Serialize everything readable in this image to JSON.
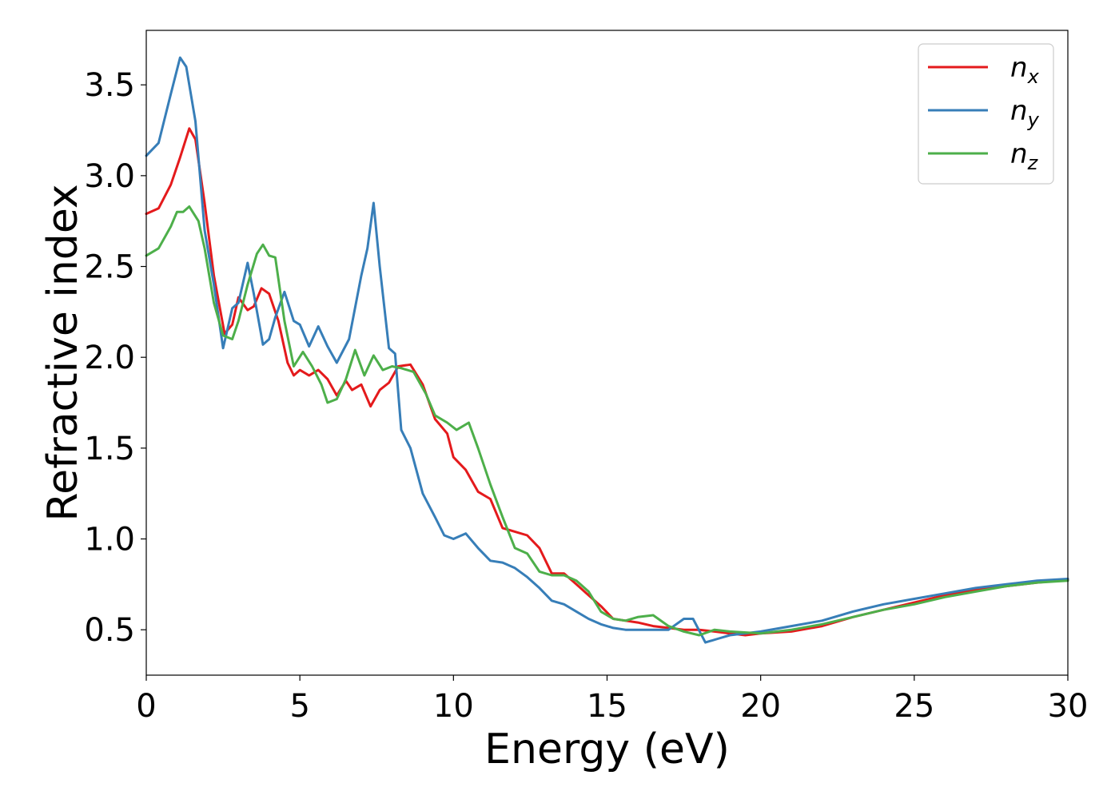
{
  "chart_data": {
    "type": "line",
    "xlabel": "Energy (eV)",
    "ylabel": "Refractive index",
    "xlim": [
      0,
      30
    ],
    "ylim": [
      0.25,
      3.8
    ],
    "xticks": [
      0,
      5,
      10,
      15,
      20,
      25,
      30
    ],
    "xtick_labels": [
      "0",
      "5",
      "10",
      "15",
      "20",
      "25",
      "30"
    ],
    "yticks": [
      0.5,
      1.0,
      1.5,
      2.0,
      2.5,
      3.0,
      3.5
    ],
    "ytick_labels": [
      "0.5",
      "1.0",
      "1.5",
      "2.0",
      "2.5",
      "3.0",
      "3.5"
    ],
    "grid": false,
    "legend_position": "top-right",
    "series": [
      {
        "name": "n",
        "subscript": "x",
        "color": "#e41a1c",
        "points": [
          [
            0,
            2.79
          ],
          [
            0.4,
            2.82
          ],
          [
            0.8,
            2.95
          ],
          [
            1.1,
            3.1
          ],
          [
            1.4,
            3.26
          ],
          [
            1.6,
            3.2
          ],
          [
            1.9,
            2.85
          ],
          [
            2.2,
            2.45
          ],
          [
            2.55,
            2.13
          ],
          [
            2.8,
            2.18
          ],
          [
            3.0,
            2.33
          ],
          [
            3.3,
            2.26
          ],
          [
            3.5,
            2.28
          ],
          [
            3.75,
            2.38
          ],
          [
            4.0,
            2.35
          ],
          [
            4.3,
            2.2
          ],
          [
            4.6,
            1.97
          ],
          [
            4.8,
            1.9
          ],
          [
            5.0,
            1.93
          ],
          [
            5.3,
            1.9
          ],
          [
            5.6,
            1.93
          ],
          [
            5.9,
            1.88
          ],
          [
            6.2,
            1.79
          ],
          [
            6.5,
            1.87
          ],
          [
            6.7,
            1.82
          ],
          [
            7.0,
            1.85
          ],
          [
            7.3,
            1.73
          ],
          [
            7.6,
            1.82
          ],
          [
            7.9,
            1.86
          ],
          [
            8.2,
            1.95
          ],
          [
            8.6,
            1.96
          ],
          [
            9.0,
            1.85
          ],
          [
            9.4,
            1.66
          ],
          [
            9.8,
            1.58
          ],
          [
            10.0,
            1.45
          ],
          [
            10.4,
            1.38
          ],
          [
            10.8,
            1.26
          ],
          [
            11.2,
            1.22
          ],
          [
            11.6,
            1.06
          ],
          [
            12.0,
            1.04
          ],
          [
            12.4,
            1.02
          ],
          [
            12.8,
            0.95
          ],
          [
            13.2,
            0.81
          ],
          [
            13.6,
            0.81
          ],
          [
            14.0,
            0.75
          ],
          [
            14.4,
            0.69
          ],
          [
            14.8,
            0.63
          ],
          [
            15.2,
            0.56
          ],
          [
            15.6,
            0.55
          ],
          [
            16.0,
            0.54
          ],
          [
            16.5,
            0.52
          ],
          [
            17.0,
            0.51
          ],
          [
            17.5,
            0.5
          ],
          [
            18.0,
            0.5
          ],
          [
            18.5,
            0.49
          ],
          [
            19.0,
            0.48
          ],
          [
            19.5,
            0.47
          ],
          [
            20.0,
            0.48
          ],
          [
            21.0,
            0.49
          ],
          [
            22.0,
            0.52
          ],
          [
            23.0,
            0.57
          ],
          [
            24.0,
            0.61
          ],
          [
            25.0,
            0.65
          ],
          [
            26.0,
            0.69
          ],
          [
            27.0,
            0.72
          ],
          [
            28.0,
            0.74
          ],
          [
            29.0,
            0.76
          ],
          [
            30.0,
            0.775
          ]
        ]
      },
      {
        "name": "n",
        "subscript": "y",
        "color": "#377eb8",
        "points": [
          [
            0,
            3.11
          ],
          [
            0.4,
            3.18
          ],
          [
            0.8,
            3.45
          ],
          [
            1.1,
            3.65
          ],
          [
            1.3,
            3.6
          ],
          [
            1.6,
            3.3
          ],
          [
            1.9,
            2.7
          ],
          [
            2.2,
            2.4
          ],
          [
            2.5,
            2.05
          ],
          [
            2.8,
            2.27
          ],
          [
            3.0,
            2.3
          ],
          [
            3.3,
            2.52
          ],
          [
            3.5,
            2.35
          ],
          [
            3.8,
            2.07
          ],
          [
            4.0,
            2.1
          ],
          [
            4.2,
            2.22
          ],
          [
            4.5,
            2.36
          ],
          [
            4.8,
            2.2
          ],
          [
            5.0,
            2.18
          ],
          [
            5.3,
            2.06
          ],
          [
            5.6,
            2.17
          ],
          [
            5.9,
            2.06
          ],
          [
            6.2,
            1.97
          ],
          [
            6.6,
            2.1
          ],
          [
            7.0,
            2.45
          ],
          [
            7.2,
            2.6
          ],
          [
            7.4,
            2.85
          ],
          [
            7.6,
            2.5
          ],
          [
            7.9,
            2.05
          ],
          [
            8.1,
            2.02
          ],
          [
            8.3,
            1.6
          ],
          [
            8.6,
            1.5
          ],
          [
            9.0,
            1.25
          ],
          [
            9.4,
            1.12
          ],
          [
            9.7,
            1.02
          ],
          [
            10.0,
            1.0
          ],
          [
            10.4,
            1.03
          ],
          [
            10.8,
            0.95
          ],
          [
            11.2,
            0.88
          ],
          [
            11.6,
            0.87
          ],
          [
            12.0,
            0.84
          ],
          [
            12.4,
            0.79
          ],
          [
            12.8,
            0.73
          ],
          [
            13.2,
            0.66
          ],
          [
            13.6,
            0.64
          ],
          [
            14.0,
            0.6
          ],
          [
            14.4,
            0.56
          ],
          [
            14.8,
            0.53
          ],
          [
            15.2,
            0.51
          ],
          [
            15.6,
            0.5
          ],
          [
            16.0,
            0.5
          ],
          [
            16.5,
            0.5
          ],
          [
            17.0,
            0.5
          ],
          [
            17.5,
            0.56
          ],
          [
            17.8,
            0.56
          ],
          [
            18.2,
            0.43
          ],
          [
            18.6,
            0.45
          ],
          [
            19.0,
            0.47
          ],
          [
            20.0,
            0.49
          ],
          [
            21.0,
            0.52
          ],
          [
            22.0,
            0.55
          ],
          [
            23.0,
            0.6
          ],
          [
            24.0,
            0.64
          ],
          [
            25.0,
            0.67
          ],
          [
            26.0,
            0.7
          ],
          [
            27.0,
            0.73
          ],
          [
            28.0,
            0.75
          ],
          [
            29.0,
            0.77
          ],
          [
            30.0,
            0.78
          ]
        ]
      },
      {
        "name": "n",
        "subscript": "z",
        "color": "#4daf4a",
        "points": [
          [
            0,
            2.56
          ],
          [
            0.4,
            2.6
          ],
          [
            0.8,
            2.72
          ],
          [
            1.0,
            2.8
          ],
          [
            1.2,
            2.8
          ],
          [
            1.4,
            2.83
          ],
          [
            1.7,
            2.75
          ],
          [
            1.9,
            2.6
          ],
          [
            2.2,
            2.3
          ],
          [
            2.5,
            2.12
          ],
          [
            2.8,
            2.1
          ],
          [
            3.0,
            2.2
          ],
          [
            3.3,
            2.4
          ],
          [
            3.6,
            2.57
          ],
          [
            3.8,
            2.62
          ],
          [
            4.0,
            2.56
          ],
          [
            4.2,
            2.55
          ],
          [
            4.5,
            2.2
          ],
          [
            4.8,
            1.95
          ],
          [
            5.1,
            2.03
          ],
          [
            5.4,
            1.95
          ],
          [
            5.7,
            1.85
          ],
          [
            5.9,
            1.75
          ],
          [
            6.2,
            1.77
          ],
          [
            6.5,
            1.88
          ],
          [
            6.8,
            2.04
          ],
          [
            7.1,
            1.9
          ],
          [
            7.4,
            2.01
          ],
          [
            7.7,
            1.93
          ],
          [
            8.0,
            1.95
          ],
          [
            8.3,
            1.94
          ],
          [
            8.7,
            1.92
          ],
          [
            9.1,
            1.8
          ],
          [
            9.4,
            1.68
          ],
          [
            9.8,
            1.64
          ],
          [
            10.1,
            1.6
          ],
          [
            10.5,
            1.64
          ],
          [
            10.8,
            1.5
          ],
          [
            11.2,
            1.3
          ],
          [
            11.6,
            1.12
          ],
          [
            12.0,
            0.95
          ],
          [
            12.4,
            0.92
          ],
          [
            12.8,
            0.82
          ],
          [
            13.2,
            0.8
          ],
          [
            13.6,
            0.8
          ],
          [
            14.0,
            0.77
          ],
          [
            14.4,
            0.71
          ],
          [
            14.8,
            0.6
          ],
          [
            15.2,
            0.56
          ],
          [
            15.6,
            0.55
          ],
          [
            16.0,
            0.57
          ],
          [
            16.5,
            0.58
          ],
          [
            17.0,
            0.52
          ],
          [
            17.5,
            0.49
          ],
          [
            18.0,
            0.47
          ],
          [
            18.5,
            0.5
          ],
          [
            19.0,
            0.49
          ],
          [
            20.0,
            0.48
          ],
          [
            21.0,
            0.5
          ],
          [
            22.0,
            0.53
          ],
          [
            23.0,
            0.57
          ],
          [
            24.0,
            0.61
          ],
          [
            25.0,
            0.64
          ],
          [
            26.0,
            0.68
          ],
          [
            27.0,
            0.71
          ],
          [
            28.0,
            0.74
          ],
          [
            29.0,
            0.76
          ],
          [
            30.0,
            0.77
          ]
        ]
      }
    ]
  }
}
